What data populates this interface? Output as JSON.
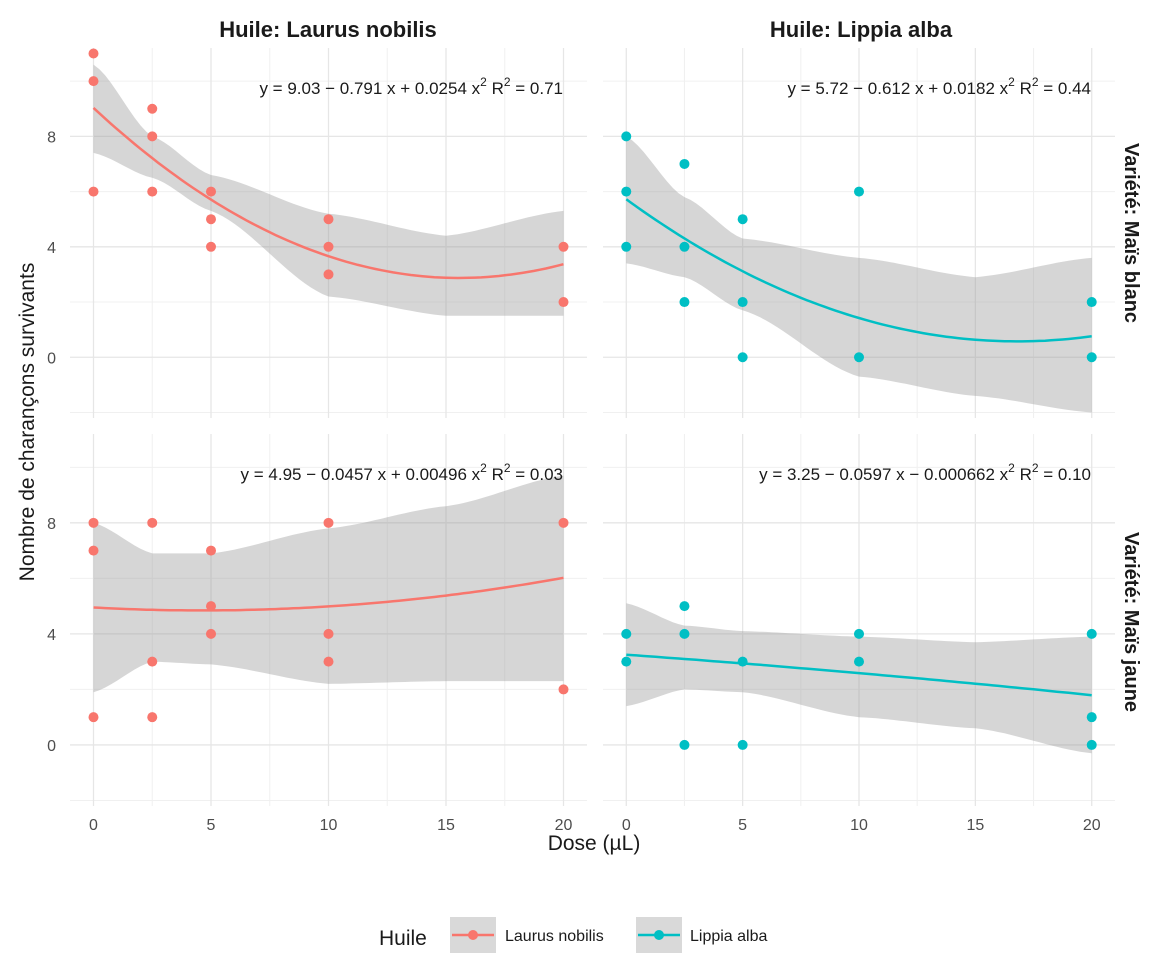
{
  "chart_data": {
    "type": "scatter",
    "xlabel": "Dose (µL)",
    "ylabel": "Nombre de charançons survivants",
    "xlim": [
      -1,
      21
    ],
    "ylim": [
      -2.2,
      11.2
    ],
    "x_ticks": [
      0,
      5,
      10,
      15,
      20
    ],
    "y_ticks": [
      0,
      4,
      8
    ],
    "grid": true,
    "legend": {
      "title": "Huile",
      "placement": "bottom",
      "entries": [
        {
          "label": "Laurus nobilis",
          "color": "#F8766D"
        },
        {
          "label": "Lippia alba",
          "color": "#00BFC4"
        }
      ]
    },
    "column_strips": [
      "Huile: Laurus nobilis",
      "Huile: Lippia alba"
    ],
    "row_strips": [
      "Variété: Maïs blanc",
      "Variété: Maïs jaune"
    ],
    "panels": [
      {
        "row": 0,
        "col": 0,
        "series": "Laurus nobilis",
        "color": "#F8766D",
        "equation": {
          "prefix": "y = 9.03 − 0.791 x + 0.0254 x",
          "sup": "2",
          "r2": "R",
          "r2sup": "2",
          "r2val": " = 0.71"
        },
        "fit": {
          "coef": [
            9.03,
            -0.791,
            0.0254
          ]
        },
        "band_upper": [
          [
            0,
            10.6
          ],
          [
            2.5,
            8.0
          ],
          [
            5,
            6.6
          ],
          [
            10,
            5.2
          ],
          [
            15,
            4.4
          ],
          [
            20,
            5.3
          ]
        ],
        "band_lower": [
          [
            0,
            7.4
          ],
          [
            2.5,
            6.5
          ],
          [
            5,
            5.3
          ],
          [
            10,
            2.2
          ],
          [
            15,
            1.5
          ],
          [
            20,
            1.5
          ]
        ],
        "points": [
          [
            0,
            11
          ],
          [
            0,
            10
          ],
          [
            0,
            6
          ],
          [
            2.5,
            9
          ],
          [
            2.5,
            8
          ],
          [
            2.5,
            6
          ],
          [
            5,
            6
          ],
          [
            5,
            5
          ],
          [
            5,
            4
          ],
          [
            10,
            5
          ],
          [
            10,
            4
          ],
          [
            10,
            3
          ],
          [
            20,
            4
          ],
          [
            20,
            2
          ]
        ]
      },
      {
        "row": 0,
        "col": 1,
        "series": "Lippia alba",
        "color": "#00BFC4",
        "equation": {
          "prefix": "y = 5.72 − 0.612 x + 0.0182 x",
          "sup": "2",
          "r2": "R",
          "r2sup": "2",
          "r2val": " = 0.44"
        },
        "fit": {
          "coef": [
            5.72,
            -0.612,
            0.0182
          ]
        },
        "band_upper": [
          [
            0,
            8.0
          ],
          [
            2.5,
            5.8
          ],
          [
            5,
            4.3
          ],
          [
            10,
            3.6
          ],
          [
            15,
            2.9
          ],
          [
            20,
            3.6
          ]
        ],
        "band_lower": [
          [
            0,
            3.4
          ],
          [
            2.5,
            2.9
          ],
          [
            5,
            1.7
          ],
          [
            10,
            -0.7
          ],
          [
            15,
            -1.4
          ],
          [
            20,
            -2.0
          ]
        ],
        "points": [
          [
            0,
            8
          ],
          [
            0,
            6
          ],
          [
            0,
            4
          ],
          [
            2.5,
            7
          ],
          [
            2.5,
            4
          ],
          [
            2.5,
            2
          ],
          [
            5,
            5
          ],
          [
            5,
            2
          ],
          [
            5,
            0
          ],
          [
            10,
            6
          ],
          [
            10,
            0
          ],
          [
            20,
            2
          ],
          [
            20,
            0
          ]
        ]
      },
      {
        "row": 1,
        "col": 0,
        "series": "Laurus nobilis",
        "color": "#F8766D",
        "equation": {
          "prefix": "y = 4.95 − 0.0457 x + 0.00496 x",
          "sup": "2",
          "r2": "R",
          "r2sup": "2",
          "r2val": " = 0.03"
        },
        "fit": {
          "coef": [
            4.95,
            -0.0457,
            0.00496
          ]
        },
        "band_upper": [
          [
            0,
            8.0
          ],
          [
            2.5,
            6.9
          ],
          [
            5,
            6.9
          ],
          [
            10,
            7.8
          ],
          [
            15,
            8.6
          ],
          [
            20,
            9.7
          ]
        ],
        "band_lower": [
          [
            0,
            1.9
          ],
          [
            2.5,
            3.0
          ],
          [
            5,
            2.9
          ],
          [
            10,
            2.2
          ],
          [
            15,
            2.3
          ],
          [
            20,
            2.3
          ]
        ],
        "points": [
          [
            0,
            8
          ],
          [
            0,
            7
          ],
          [
            0,
            1
          ],
          [
            2.5,
            8
          ],
          [
            2.5,
            3
          ],
          [
            2.5,
            1
          ],
          [
            5,
            7
          ],
          [
            5,
            5
          ],
          [
            5,
            4
          ],
          [
            10,
            8
          ],
          [
            10,
            4
          ],
          [
            10,
            3
          ],
          [
            20,
            8
          ],
          [
            20,
            2
          ]
        ]
      },
      {
        "row": 1,
        "col": 1,
        "series": "Lippia alba",
        "color": "#00BFC4",
        "equation": {
          "prefix": "y = 3.25 − 0.0597 x − 0.000662 x",
          "sup": "2",
          "r2": "R",
          "r2sup": "2",
          "r2val": " = 0.10"
        },
        "fit": {
          "coef": [
            3.25,
            -0.0597,
            -0.000662
          ]
        },
        "band_upper": [
          [
            0,
            5.1
          ],
          [
            2.5,
            4.3
          ],
          [
            5,
            4.1
          ],
          [
            10,
            3.9
          ],
          [
            15,
            3.7
          ],
          [
            20,
            3.9
          ]
        ],
        "band_lower": [
          [
            0,
            1.4
          ],
          [
            2.5,
            2.0
          ],
          [
            5,
            1.9
          ],
          [
            10,
            1.0
          ],
          [
            15,
            0.6
          ],
          [
            20,
            -0.3
          ]
        ],
        "points": [
          [
            0,
            4
          ],
          [
            0,
            3
          ],
          [
            2.5,
            5
          ],
          [
            2.5,
            4
          ],
          [
            2.5,
            0
          ],
          [
            5,
            3
          ],
          [
            5,
            0
          ],
          [
            10,
            4
          ],
          [
            10,
            3
          ],
          [
            20,
            4
          ],
          [
            20,
            1
          ],
          [
            20,
            0
          ]
        ]
      }
    ]
  }
}
